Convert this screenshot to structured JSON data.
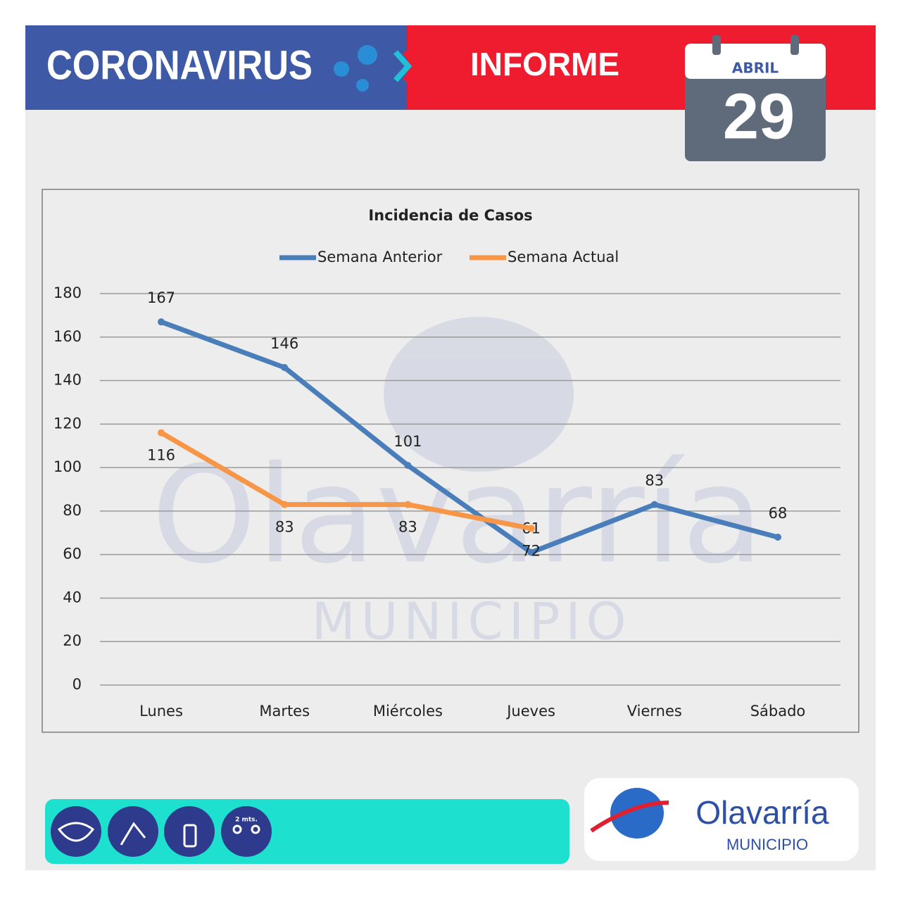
{
  "header": {
    "left": "CORONAVIRUS",
    "right": "INFORME",
    "month": "ABRIL",
    "day": "29"
  },
  "watermark": {
    "name": "Olavarría",
    "sub": "MUNICIPIO"
  },
  "footer": {
    "distance": "2 mts.",
    "logo_name": "Olavarría",
    "logo_sub": "MUNICIPIO"
  },
  "chart_data": {
    "type": "line",
    "title": "Incidencia de Casos",
    "categories": [
      "Lunes",
      "Martes",
      "Miércoles",
      "Jueves",
      "Viernes",
      "Sábado"
    ],
    "series": [
      {
        "name": "Semana Anterior",
        "color": "#4a7ebb",
        "values": [
          167,
          146,
          101,
          61,
          83,
          68
        ]
      },
      {
        "name": "Semana Actual",
        "color": "#f79646",
        "values": [
          116,
          83,
          83,
          72,
          null,
          null
        ]
      }
    ],
    "ylim": [
      0,
      180
    ],
    "yticks": [
      0,
      20,
      40,
      60,
      80,
      100,
      120,
      140,
      160,
      180
    ],
    "grid": true,
    "legend": "top"
  }
}
